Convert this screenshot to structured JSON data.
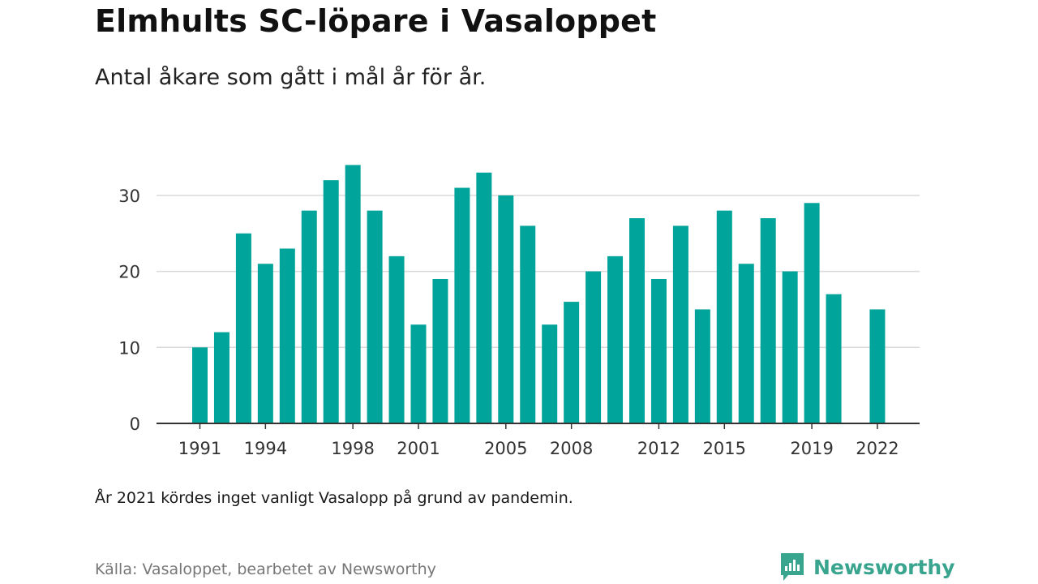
{
  "header": {
    "title": "Elmhults SC-löpare i Vasaloppet",
    "subtitle": "Antal åkare som gått i mål år för år."
  },
  "footer": {
    "note": "År 2021 kördes inget vanligt Vasalopp på grund av pandemin.",
    "source": "Källa: Vasaloppet, bearbetet av Newsworthy",
    "brand": "Newsworthy"
  },
  "colors": {
    "bar": "#00a49b",
    "grid": "#d9d9d9",
    "axis": "#333333",
    "brand": "#3aa58e"
  },
  "chart_data": {
    "type": "bar",
    "title": "Elmhults SC-löpare i Vasaloppet",
    "subtitle": "Antal åkare som gått i mål år för år.",
    "xlabel": "",
    "ylabel": "",
    "categories": [
      1991,
      1992,
      1993,
      1994,
      1995,
      1996,
      1997,
      1998,
      1999,
      2000,
      2001,
      2002,
      2003,
      2004,
      2005,
      2006,
      2007,
      2008,
      2009,
      2010,
      2011,
      2012,
      2013,
      2014,
      2015,
      2016,
      2017,
      2018,
      2019,
      2020,
      2021,
      2022
    ],
    "values": [
      10,
      12,
      25,
      21,
      23,
      28,
      32,
      34,
      28,
      22,
      13,
      19,
      31,
      33,
      30,
      26,
      13,
      16,
      20,
      22,
      27,
      19,
      26,
      15,
      28,
      21,
      27,
      20,
      29,
      17,
      null,
      15
    ],
    "x_tick_labels": [
      "1991",
      "1994",
      "1998",
      "2001",
      "2005",
      "2008",
      "2012",
      "2015",
      "2019",
      "2022"
    ],
    "y_ticks": [
      0,
      10,
      20,
      30
    ],
    "ylim": [
      0,
      35
    ],
    "grid": true,
    "legend": "none"
  }
}
